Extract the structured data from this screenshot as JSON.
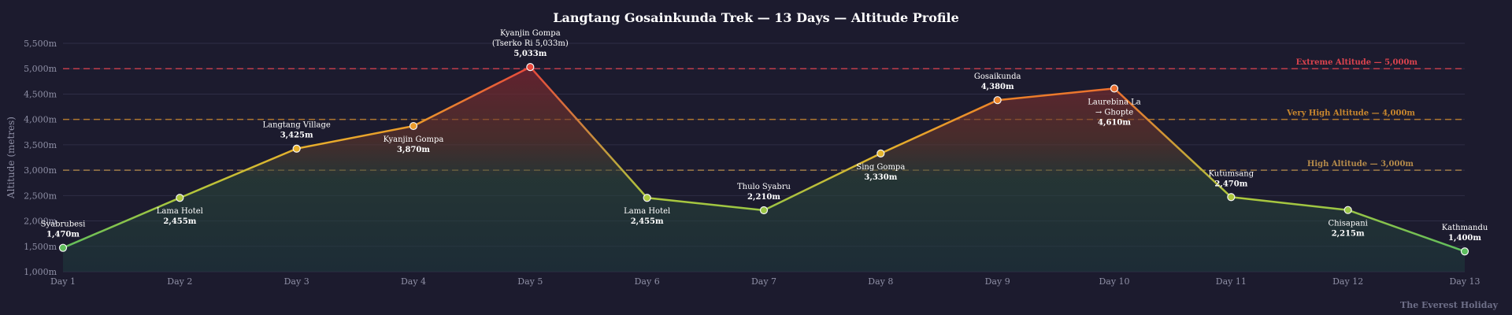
{
  "chart_data": {
    "type": "area",
    "title": "Langtang Gosainkunda Trek — 13 Days — Altitude Profile",
    "ylabel": "Altitude (metres)",
    "xlabel": "",
    "ylim": [
      1000,
      5500
    ],
    "yticks": [
      1000,
      1500,
      2000,
      2500,
      3000,
      3500,
      4000,
      4500,
      5000,
      5500
    ],
    "ytick_labels": [
      "1,000m",
      "1,500m",
      "2,000m",
      "2,500m",
      "3,000m",
      "3,500m",
      "4,000m",
      "4,500m",
      "5,000m",
      "5,500m"
    ],
    "categories": [
      "Day 1",
      "Day 2",
      "Day 3",
      "Day 4",
      "Day 5",
      "Day 6",
      "Day 7",
      "Day 8",
      "Day 9",
      "Day 10",
      "Day 11",
      "Day 12",
      "Day 13"
    ],
    "values": [
      1470,
      2455,
      3425,
      3870,
      5033,
      2455,
      2210,
      3330,
      4380,
      4610,
      2470,
      2215,
      1400
    ],
    "point_labels": [
      {
        "name": [
          "Syabrubesi"
        ],
        "value": "1,470m"
      },
      {
        "name": [
          "Lama Hotel"
        ],
        "value": "2,455m"
      },
      {
        "name": [
          "Langtang Village"
        ],
        "value": "3,425m"
      },
      {
        "name": [
          "Kyanjin Gompa"
        ],
        "value": "3,870m"
      },
      {
        "name": [
          "Kyanjin Gompa",
          "(Tserko Ri 5,033m)"
        ],
        "value": "5,033m"
      },
      {
        "name": [
          "Lama Hotel"
        ],
        "value": "2,455m"
      },
      {
        "name": [
          "Thulo Syabru"
        ],
        "value": "2,210m"
      },
      {
        "name": [
          "Sing Gompa"
        ],
        "value": "3,330m"
      },
      {
        "name": [
          "Gosaikunda"
        ],
        "value": "4,380m"
      },
      {
        "name": [
          "Laurebina La",
          "→ Ghopte"
        ],
        "value": "4,610m"
      },
      {
        "name": [
          "Kutumsang"
        ],
        "value": "2,470m"
      },
      {
        "name": [
          "Chisapani"
        ],
        "value": "2,215m"
      },
      {
        "name": [
          "Kathmandu"
        ],
        "value": "1,400m"
      }
    ],
    "thresholds": [
      {
        "label": "High Altitude — 3,000m",
        "value": 3000,
        "color": "#b48a4a"
      },
      {
        "label": "Very High Altitude — 4,000m",
        "value": 4000,
        "color": "#c8872e"
      },
      {
        "label": "Extreme Altitude — 5,000m",
        "value": 5000,
        "color": "#d9434e"
      }
    ],
    "grid": true,
    "legend": "none"
  },
  "credit": "The Everest Holiday"
}
